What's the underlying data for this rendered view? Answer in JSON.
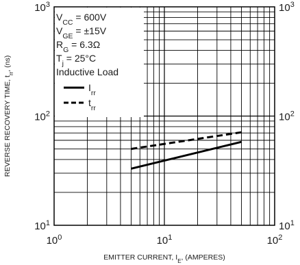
{
  "chart_data": {
    "type": "line",
    "x_scale": "log",
    "y_scale": "log",
    "xlim": [
      1,
      100
    ],
    "ylim": [
      10,
      1000
    ],
    "grid": true,
    "x_ticks": [
      {
        "base": "10",
        "exp": "0"
      },
      {
        "base": "10",
        "exp": "1"
      },
      {
        "base": "10",
        "exp": "2"
      }
    ],
    "y_ticks": [
      {
        "base": "10",
        "exp": "1"
      },
      {
        "base": "10",
        "exp": "2"
      },
      {
        "base": "10",
        "exp": "3"
      }
    ],
    "xlabel": {
      "main": "EMITTER CURRENT, I",
      "sub": "E",
      "tail": ", (AMPERES)"
    },
    "ylabel": {
      "main": "REVERSE RECOVERY TIME, t",
      "sub": "rr",
      "tail": ", (ns)"
    },
    "conditions": [
      {
        "main": "V",
        "sub": "CC",
        "tail": " = 600V"
      },
      {
        "main": "V",
        "sub": "GE",
        "tail": " = ±15V"
      },
      {
        "main": "R",
        "sub": "G",
        "tail": " = 6.3Ω"
      },
      {
        "main": "T",
        "sub": "j",
        "tail": " = 25°C"
      },
      {
        "main": "Inductive Load",
        "sub": "",
        "tail": ""
      }
    ],
    "legend_placement": "top-left",
    "series": [
      {
        "label": {
          "main": "I",
          "sub": "rr"
        },
        "style": "solid",
        "x": [
          5,
          50
        ],
        "y": [
          33,
          58
        ]
      },
      {
        "label": {
          "main": "t",
          "sub": "rr"
        },
        "style": "dashed",
        "x": [
          5,
          50
        ],
        "y": [
          50,
          71
        ]
      }
    ]
  }
}
